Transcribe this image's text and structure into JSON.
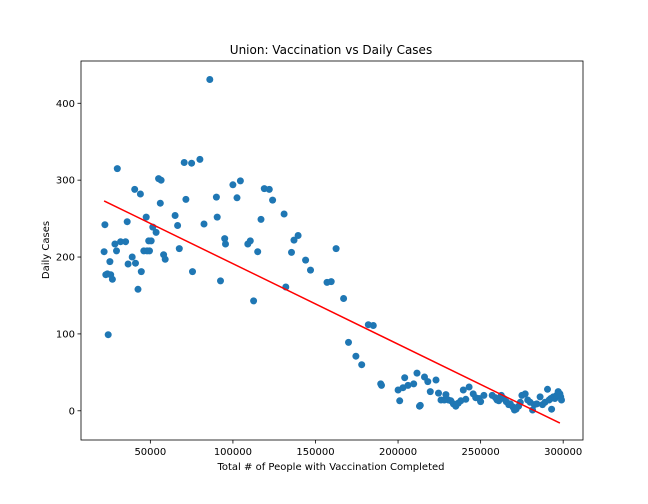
{
  "chart_data": {
    "type": "scatter",
    "title": "Union: Vaccination vs Daily Cases",
    "xlabel": "Total # of People with Vaccination Completed",
    "ylabel": "Daily Cases",
    "xlim": [
      8000,
      312000
    ],
    "ylim": [
      -38,
      455
    ],
    "xticks": [
      {
        "value": 50000,
        "label": "50000"
      },
      {
        "value": 100000,
        "label": "100000"
      },
      {
        "value": 150000,
        "label": "150000"
      },
      {
        "value": 200000,
        "label": "200000"
      },
      {
        "value": 250000,
        "label": "250000"
      },
      {
        "value": 300000,
        "label": "300000"
      }
    ],
    "yticks": [
      {
        "value": 0,
        "label": "0"
      },
      {
        "value": 100,
        "label": "100"
      },
      {
        "value": 200,
        "label": "200"
      },
      {
        "value": 300,
        "label": "300"
      },
      {
        "value": 400,
        "label": "400"
      }
    ],
    "grid": false,
    "colors": {
      "points": "#1f77b4",
      "trendline": "#ff0000"
    },
    "trendline": {
      "x": [
        22000,
        298000
      ],
      "y": [
        273,
        -16
      ]
    },
    "points": [
      [
        22000,
        207
      ],
      [
        22500,
        242
      ],
      [
        23000,
        177
      ],
      [
        24000,
        178
      ],
      [
        24500,
        99
      ],
      [
        25500,
        194
      ],
      [
        26000,
        177
      ],
      [
        27000,
        171
      ],
      [
        28500,
        217
      ],
      [
        29500,
        208
      ],
      [
        30000,
        315
      ],
      [
        32000,
        220
      ],
      [
        35000,
        220
      ],
      [
        36000,
        246
      ],
      [
        36500,
        191
      ],
      [
        39000,
        200
      ],
      [
        40500,
        288
      ],
      [
        41000,
        192
      ],
      [
        42500,
        158
      ],
      [
        44000,
        282
      ],
      [
        44500,
        181
      ],
      [
        46000,
        208
      ],
      [
        47500,
        252
      ],
      [
        48000,
        208
      ],
      [
        49000,
        221
      ],
      [
        49500,
        208
      ],
      [
        50500,
        221
      ],
      [
        51500,
        239
      ],
      [
        53500,
        232
      ],
      [
        55000,
        302
      ],
      [
        56000,
        270
      ],
      [
        56500,
        300
      ],
      [
        58000,
        203
      ],
      [
        59000,
        197
      ],
      [
        65000,
        254
      ],
      [
        66500,
        241
      ],
      [
        67500,
        211
      ],
      [
        70500,
        323
      ],
      [
        71500,
        275
      ],
      [
        75000,
        322
      ],
      [
        75500,
        181
      ],
      [
        80000,
        327
      ],
      [
        82500,
        243
      ],
      [
        86000,
        431
      ],
      [
        90000,
        278
      ],
      [
        90500,
        252
      ],
      [
        92500,
        169
      ],
      [
        95000,
        224
      ],
      [
        95500,
        217
      ],
      [
        100000,
        294
      ],
      [
        102500,
        277
      ],
      [
        104500,
        299
      ],
      [
        109000,
        217
      ],
      [
        110500,
        221
      ],
      [
        112500,
        143
      ],
      [
        115000,
        207
      ],
      [
        117000,
        249
      ],
      [
        119000,
        289
      ],
      [
        122000,
        288
      ],
      [
        124000,
        274
      ],
      [
        131000,
        256
      ],
      [
        132000,
        161
      ],
      [
        135500,
        206
      ],
      [
        137000,
        222
      ],
      [
        139500,
        228
      ],
      [
        144000,
        196
      ],
      [
        147000,
        183
      ],
      [
        157000,
        167
      ],
      [
        159500,
        168
      ],
      [
        162500,
        211
      ],
      [
        167000,
        146
      ],
      [
        170000,
        89
      ],
      [
        174500,
        71
      ],
      [
        178000,
        60
      ],
      [
        182000,
        112
      ],
      [
        185000,
        111
      ],
      [
        189500,
        35
      ],
      [
        190000,
        33
      ],
      [
        200000,
        27
      ],
      [
        201000,
        13
      ],
      [
        203000,
        30
      ],
      [
        204000,
        43
      ],
      [
        206000,
        33
      ],
      [
        209500,
        35
      ],
      [
        211500,
        49
      ],
      [
        213000,
        6
      ],
      [
        213500,
        7
      ],
      [
        216000,
        44
      ],
      [
        218000,
        38
      ],
      [
        219500,
        25
      ],
      [
        223000,
        40
      ],
      [
        224500,
        23
      ],
      [
        226000,
        14
      ],
      [
        228000,
        14
      ],
      [
        229000,
        21
      ],
      [
        230500,
        14
      ],
      [
        232000,
        13
      ],
      [
        233500,
        9
      ],
      [
        235000,
        6
      ],
      [
        236500,
        10
      ],
      [
        238000,
        13
      ],
      [
        239500,
        27
      ],
      [
        241000,
        15
      ],
      [
        243000,
        31
      ],
      [
        245500,
        22
      ],
      [
        247000,
        17
      ],
      [
        249000,
        16
      ],
      [
        250000,
        12
      ],
      [
        252000,
        20
      ],
      [
        257000,
        20
      ],
      [
        259000,
        17
      ],
      [
        260000,
        14
      ],
      [
        261000,
        13
      ],
      [
        262500,
        20
      ],
      [
        264000,
        16
      ],
      [
        265500,
        12
      ],
      [
        267000,
        8
      ],
      [
        268000,
        9
      ],
      [
        269500,
        5
      ],
      [
        270500,
        1
      ],
      [
        271500,
        2
      ],
      [
        273000,
        6
      ],
      [
        274000,
        11
      ],
      [
        275000,
        20
      ],
      [
        277000,
        22
      ],
      [
        278500,
        14
      ],
      [
        280000,
        11
      ],
      [
        281500,
        1
      ],
      [
        282500,
        8
      ],
      [
        284000,
        9
      ],
      [
        286000,
        18
      ],
      [
        287500,
        8
      ],
      [
        289000,
        11
      ],
      [
        290500,
        28
      ],
      [
        291500,
        14
      ],
      [
        292500,
        16
      ],
      [
        293000,
        2
      ],
      [
        294000,
        18
      ],
      [
        295000,
        16
      ],
      [
        296000,
        20
      ],
      [
        297000,
        25
      ],
      [
        298000,
        22
      ],
      [
        298500,
        18
      ],
      [
        299000,
        14
      ]
    ]
  }
}
